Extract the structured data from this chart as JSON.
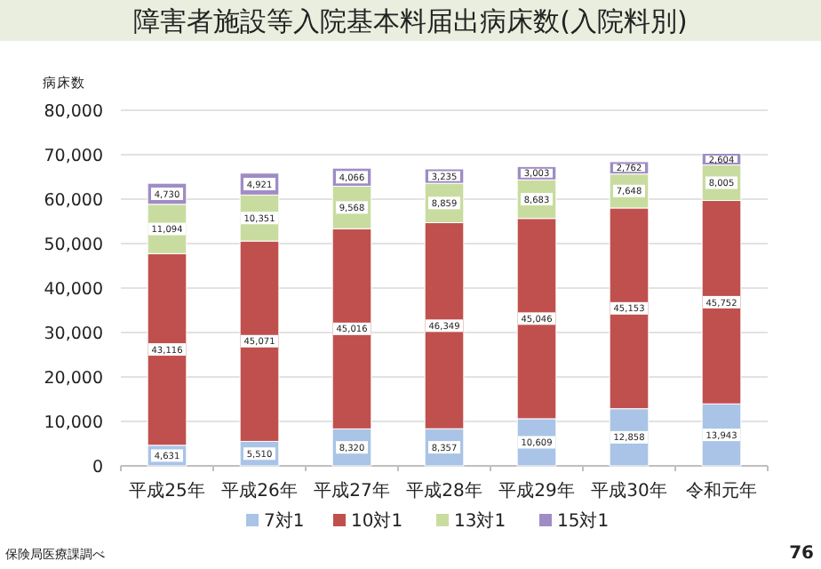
{
  "chart_data": {
    "type": "bar",
    "title": "障害者施設等入院基本料届出病床数(入院料別)",
    "ylabel": "病床数",
    "categories": [
      "平成25年",
      "平成26年",
      "平成27年",
      "平成28年",
      "平成29年",
      "平成30年",
      "令和元年"
    ],
    "series": [
      {
        "name": "7対1",
        "color": "#a9c4e6",
        "values": [
          4631,
          5510,
          8320,
          8357,
          10609,
          12858,
          13943
        ],
        "value_labels": [
          "4,631",
          "5,510",
          "8,320",
          "8,357",
          "10,609",
          "12,858",
          "13,943"
        ]
      },
      {
        "name": "10対1",
        "color": "#c0504d",
        "values": [
          43116,
          45071,
          45016,
          46349,
          45046,
          45153,
          45752
        ],
        "value_labels": [
          "43,116",
          "45,071",
          "45,016",
          "46,349",
          "45,046",
          "45,153",
          "45,752"
        ]
      },
      {
        "name": "13対1",
        "color": "#c9dca0",
        "values": [
          11094,
          10351,
          9568,
          8859,
          8683,
          7648,
          8005
        ],
        "value_labels": [
          "11,094",
          "10,351",
          "9,568",
          "8,859",
          "8,683",
          "7,648",
          "8,005"
        ]
      },
      {
        "name": "15対1",
        "color": "#9f8cc4",
        "values": [
          4730,
          4921,
          4066,
          3235,
          3003,
          2762,
          2604
        ],
        "value_labels": [
          "4,730",
          "4,921",
          "4,066",
          "3,235",
          "3,003",
          "2,762",
          "2,604"
        ]
      }
    ],
    "stacked": true,
    "grid": "y",
    "legend": "bottom",
    "ylim": [
      0,
      80000
    ],
    "yticks": [
      {
        "value": 0,
        "label": "0"
      },
      {
        "value": 10000,
        "label": "10,000"
      },
      {
        "value": 20000,
        "label": "20,000"
      },
      {
        "value": 30000,
        "label": "30,000"
      },
      {
        "value": 40000,
        "label": "40,000"
      },
      {
        "value": 50000,
        "label": "50,000"
      },
      {
        "value": 60000,
        "label": "60,000"
      },
      {
        "value": 70000,
        "label": "70,000"
      },
      {
        "value": 80000,
        "label": "80,000"
      }
    ],
    "annotations": [
      "保険局医療課調べ",
      "76"
    ]
  }
}
